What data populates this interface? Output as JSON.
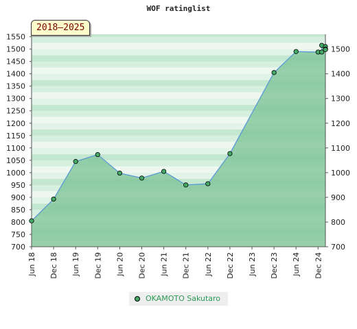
{
  "chart_data": {
    "type": "area",
    "title": "WOF ratinglist",
    "period_label": "2018–2025",
    "y_left_ticks": [
      700,
      750,
      800,
      850,
      900,
      950,
      1000,
      1050,
      1100,
      1150,
      1200,
      1250,
      1300,
      1350,
      1400,
      1450,
      1500,
      1550
    ],
    "y_right_ticks": [
      700,
      800,
      900,
      1000,
      1100,
      1200,
      1300,
      1400,
      1500
    ],
    "ylim": [
      700,
      1560
    ],
    "x_ticks": [
      "Jun 18",
      "Dec 18",
      "Jun 19",
      "Dec 19",
      "Jun 20",
      "Dec 20",
      "Jun 21",
      "Dec 21",
      "Jun 22",
      "Dec 22",
      "Jun 23",
      "Dec 23",
      "Jun 24",
      "Dec 24"
    ],
    "x_tick_dates": [
      "2018-06",
      "2018-12",
      "2019-06",
      "2019-12",
      "2020-06",
      "2020-12",
      "2021-06",
      "2021-12",
      "2022-06",
      "2022-12",
      "2023-06",
      "2023-12",
      "2024-06",
      "2024-12"
    ],
    "xlim": [
      "2018-06",
      "2025-02"
    ],
    "grid": true,
    "legend_position": "bottom-center",
    "series": [
      {
        "name": "OKAMOTO Sakutaro",
        "color": "#5a9ad6",
        "fill_color": "#7fc498",
        "marker_color": "#44aa66",
        "points": [
          {
            "x": "2018-06",
            "y": 805
          },
          {
            "x": "2018-12",
            "y": 893
          },
          {
            "x": "2019-06",
            "y": 1045
          },
          {
            "x": "2019-12",
            "y": 1073
          },
          {
            "x": "2020-06",
            "y": 998
          },
          {
            "x": "2020-12",
            "y": 978
          },
          {
            "x": "2021-06",
            "y": 1005
          },
          {
            "x": "2021-12",
            "y": 950
          },
          {
            "x": "2022-06",
            "y": 955
          },
          {
            "x": "2022-12",
            "y": 1077
          },
          {
            "x": "2023-12",
            "y": 1405
          },
          {
            "x": "2024-06",
            "y": 1490
          },
          {
            "x": "2024-12",
            "y": 1488
          },
          {
            "x": "2025-01",
            "y": 1488
          },
          {
            "x": "2025-01",
            "y": 1515
          },
          {
            "x": "2025-02",
            "y": 1510
          },
          {
            "x": "2025-02",
            "y": 1500
          },
          {
            "x": "2025-02",
            "y": 1498
          }
        ]
      }
    ]
  }
}
